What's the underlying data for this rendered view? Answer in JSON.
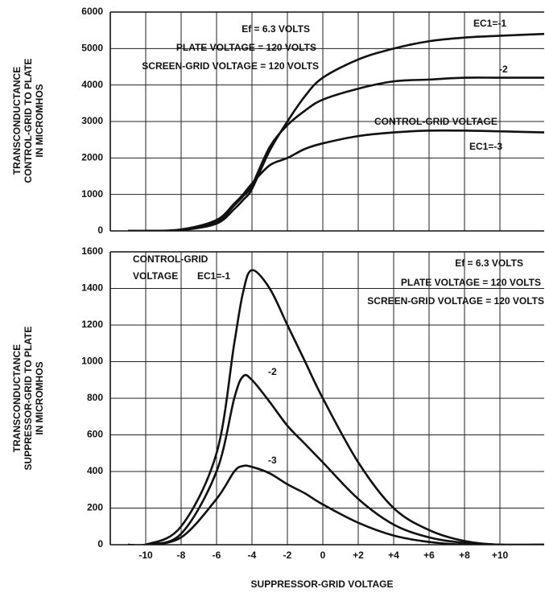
{
  "chart_data": [
    {
      "type": "line",
      "ylabel": [
        "TRANSCONDUCTANCE",
        "CONTROL-GRID TO PLATE",
        "IN MICROMHOS"
      ],
      "x": [
        -11,
        -10,
        -8,
        -6,
        -5,
        -4.5,
        -4,
        -3,
        -2,
        -1,
        0,
        2,
        4,
        6,
        8,
        10,
        12.5
      ],
      "series": [
        {
          "name": "EC1=-1",
          "color": "#111111",
          "values": [
            0,
            0,
            20,
            200,
            600,
            850,
            1150,
            2200,
            3000,
            3700,
            4200,
            4700,
            5000,
            5200,
            5300,
            5350,
            5400
          ]
        },
        {
          "name": "-2",
          "color": "#111111",
          "values": [
            0,
            0,
            30,
            250,
            700,
            950,
            1250,
            2300,
            2900,
            3300,
            3600,
            3900,
            4100,
            4150,
            4200,
            4200,
            4200
          ]
        },
        {
          "name": "EC1=-3",
          "color": "#111111",
          "values": [
            0,
            0,
            40,
            300,
            750,
            1000,
            1300,
            1800,
            2000,
            2250,
            2400,
            2600,
            2700,
            2750,
            2750,
            2730,
            2700
          ]
        }
      ],
      "ylim": [
        0,
        6000
      ],
      "yticks": [
        0,
        1000,
        2000,
        3000,
        4000,
        5000,
        6000
      ],
      "grid": true,
      "annotations": [
        "Ef = 6.3 VOLTS",
        "PLATE VOLTAGE = 120 VOLTS",
        "SCREEN-GRID VOLTAGE = 120 VOLTS",
        "CONTROL-GRID VOLTAGE"
      ]
    },
    {
      "type": "line",
      "xlabel": "SUPPRESSOR-GRID VOLTAGE",
      "ylabel": [
        "TRANSCONDUCTANCE",
        "SUPPRESSOR-GRID TO PLATE",
        "IN MICROMHOS"
      ],
      "x": [
        -11,
        -10,
        -8,
        -6,
        -5,
        -4.5,
        -4,
        -3,
        -2,
        -1,
        0,
        2,
        4,
        6,
        8,
        10,
        12.5
      ],
      "series": [
        {
          "name": "EC1=-1",
          "color": "#111111",
          "values": [
            0,
            0,
            100,
            500,
            1100,
            1380,
            1500,
            1400,
            1200,
            1000,
            800,
            450,
            200,
            80,
            20,
            0,
            0
          ]
        },
        {
          "name": "-2",
          "color": "#111111",
          "values": [
            0,
            0,
            60,
            400,
            800,
            920,
            900,
            780,
            650,
            550,
            450,
            250,
            110,
            40,
            10,
            0,
            0
          ]
        },
        {
          "name": "-3",
          "color": "#111111",
          "values": [
            0,
            0,
            40,
            250,
            400,
            430,
            425,
            390,
            330,
            280,
            220,
            120,
            50,
            15,
            0,
            0,
            0
          ]
        }
      ],
      "xlim": [
        -12,
        12.5
      ],
      "xticks": [
        -10,
        -8,
        -6,
        -4,
        -2,
        0,
        {
          "value": 2,
          "label": "+2"
        },
        {
          "value": 4,
          "label": "+4"
        },
        {
          "value": 6,
          "label": "+6"
        },
        {
          "value": 8,
          "label": "+8"
        },
        {
          "value": 10,
          "label": "+10"
        }
      ],
      "ylim": [
        0,
        1600
      ],
      "yticks": [
        0,
        200,
        400,
        600,
        800,
        1000,
        1200,
        1400,
        1600
      ],
      "grid": true,
      "annotations": [
        "CONTROL-GRID",
        "VOLTAGE",
        "Ef = 6.3 VOLTS",
        "PLATE VOLTAGE = 120 VOLTS",
        "SCREEN-GRID VOLTAGE = 120 VOLTS"
      ]
    }
  ]
}
